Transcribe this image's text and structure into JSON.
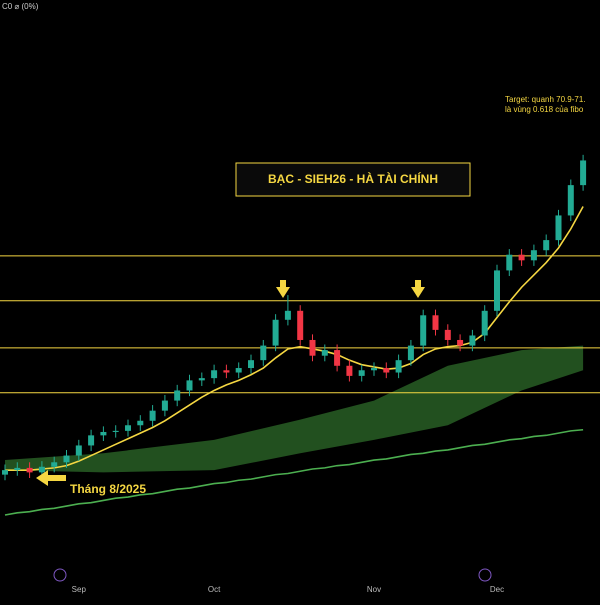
{
  "header": {
    "status": "C0 ⌀ (0%)"
  },
  "chart_data": {
    "type": "candlestick",
    "title": "BẠC - SIEH26 - HÀ TÀI CHÍNH",
    "annotations": [
      "Tháng 8/2025",
      "Target: quanh 70.9-71.",
      "là vùng 0.618 của fibo"
    ],
    "categories": [
      null,
      null,
      null,
      null,
      null,
      null,
      "Sep",
      null,
      null,
      null,
      null,
      null,
      null,
      null,
      null,
      null,
      null,
      "Oct",
      null,
      null,
      null,
      null,
      null,
      null,
      null,
      null,
      null,
      null,
      null,
      null,
      "Nov",
      null,
      null,
      null,
      null,
      null,
      null,
      null,
      null,
      null,
      "Dec",
      null,
      null,
      null,
      null,
      null,
      null,
      null
    ],
    "open": [
      37.6,
      38.0,
      38.2,
      37.8,
      38.3,
      38.7,
      39.3,
      40.2,
      41.1,
      41.4,
      41.5,
      42.0,
      42.4,
      43.3,
      44.2,
      45.1,
      46.0,
      46.2,
      46.9,
      46.7,
      47.1,
      47.8,
      49.1,
      51.4,
      52.2,
      49.6,
      48.2,
      48.7,
      47.3,
      46.4,
      46.9,
      47.1,
      46.7,
      47.8,
      49.1,
      51.8,
      50.5,
      49.6,
      49.1,
      50.0,
      52.2,
      55.8,
      57.2,
      56.7,
      57.6,
      58.5,
      60.7,
      63.4
    ],
    "high": [
      38.5,
      38.7,
      38.7,
      38.8,
      39.2,
      39.8,
      40.7,
      41.6,
      41.9,
      42.0,
      42.5,
      42.9,
      43.8,
      44.7,
      45.6,
      46.5,
      46.7,
      47.4,
      47.4,
      47.6,
      48.3,
      49.6,
      51.9,
      53.6,
      52.7,
      50.1,
      49.2,
      49.2,
      47.8,
      47.4,
      47.6,
      47.6,
      48.3,
      49.6,
      52.3,
      52.3,
      51.0,
      50.1,
      50.5,
      52.7,
      56.3,
      57.7,
      57.7,
      58.1,
      59.0,
      61.2,
      63.9,
      66.1
    ],
    "low": [
      37.1,
      37.5,
      37.3,
      37.3,
      37.8,
      38.2,
      38.8,
      39.7,
      40.6,
      40.9,
      41.0,
      41.5,
      41.9,
      42.8,
      43.7,
      44.6,
      45.5,
      45.7,
      46.2,
      46.2,
      46.6,
      47.3,
      48.6,
      50.9,
      49.1,
      47.7,
      47.7,
      46.8,
      45.9,
      45.9,
      46.4,
      46.2,
      46.2,
      47.3,
      48.6,
      50.0,
      49.1,
      48.6,
      48.6,
      49.5,
      51.7,
      55.3,
      56.2,
      56.2,
      57.1,
      58.0,
      60.2,
      62.9
    ],
    "close": [
      38.0,
      38.2,
      37.8,
      38.3,
      38.7,
      39.3,
      40.2,
      41.1,
      41.4,
      41.5,
      42.0,
      42.4,
      43.3,
      44.2,
      45.1,
      46.0,
      46.2,
      46.9,
      46.7,
      47.1,
      47.8,
      49.1,
      51.4,
      52.2,
      49.6,
      48.2,
      48.7,
      47.3,
      46.4,
      46.9,
      47.1,
      46.7,
      47.8,
      49.1,
      51.8,
      50.5,
      49.6,
      49.1,
      50.0,
      52.2,
      55.8,
      57.2,
      56.7,
      57.6,
      58.5,
      60.7,
      63.4,
      65.6
    ],
    "up_color": "#22ab94",
    "down_color": "#f23645",
    "overlays": [
      {
        "color": "#f5d742",
        "values": [
          38.0,
          38.0,
          38.0,
          38.1,
          38.2,
          38.4,
          38.8,
          39.3,
          39.8,
          40.3,
          40.8,
          41.3,
          41.8,
          42.4,
          43.1,
          43.8,
          44.5,
          45.1,
          45.6,
          46.0,
          46.5,
          47.1,
          48.0,
          48.8,
          49.0,
          48.8,
          48.6,
          48.3,
          47.8,
          47.4,
          47.2,
          47.0,
          47.1,
          47.5,
          48.3,
          48.8,
          49.0,
          49.1,
          49.4,
          50.2,
          51.6,
          53.0,
          54.3,
          55.4,
          56.5,
          57.8,
          59.5,
          61.5
        ]
      },
      {
        "color": "#4caf50",
        "values": [
          34.0,
          34.2,
          34.3,
          34.5,
          34.6,
          34.8,
          35.0,
          35.1,
          35.3,
          35.5,
          35.6,
          35.8,
          35.9,
          36.1,
          36.3,
          36.4,
          36.6,
          36.8,
          36.9,
          37.1,
          37.2,
          37.4,
          37.6,
          37.7,
          37.9,
          38.1,
          38.2,
          38.4,
          38.5,
          38.7,
          38.9,
          39.0,
          39.2,
          39.4,
          39.5,
          39.7,
          39.8,
          40.0,
          40.2,
          40.3,
          40.5,
          40.7,
          40.8,
          41.0,
          41.1,
          41.3,
          41.5,
          41.6
        ]
      }
    ],
    "cloud": {
      "color": "#2e6b2a",
      "x": [
        0,
        8,
        17,
        24,
        30,
        36,
        42,
        47
      ],
      "upper": [
        38.9,
        39.5,
        40.7,
        42.5,
        44.2,
        47.3,
        48.7,
        49.1
      ],
      "lower": [
        38.0,
        37.8,
        38.0,
        39.5,
        40.7,
        42.0,
        45.1,
        46.9
      ]
    },
    "levels": [
      57.1,
      53.1,
      48.9,
      44.9
    ],
    "level_color": "#f5d742",
    "ylim": [
      29.1,
      79.9
    ]
  }
}
